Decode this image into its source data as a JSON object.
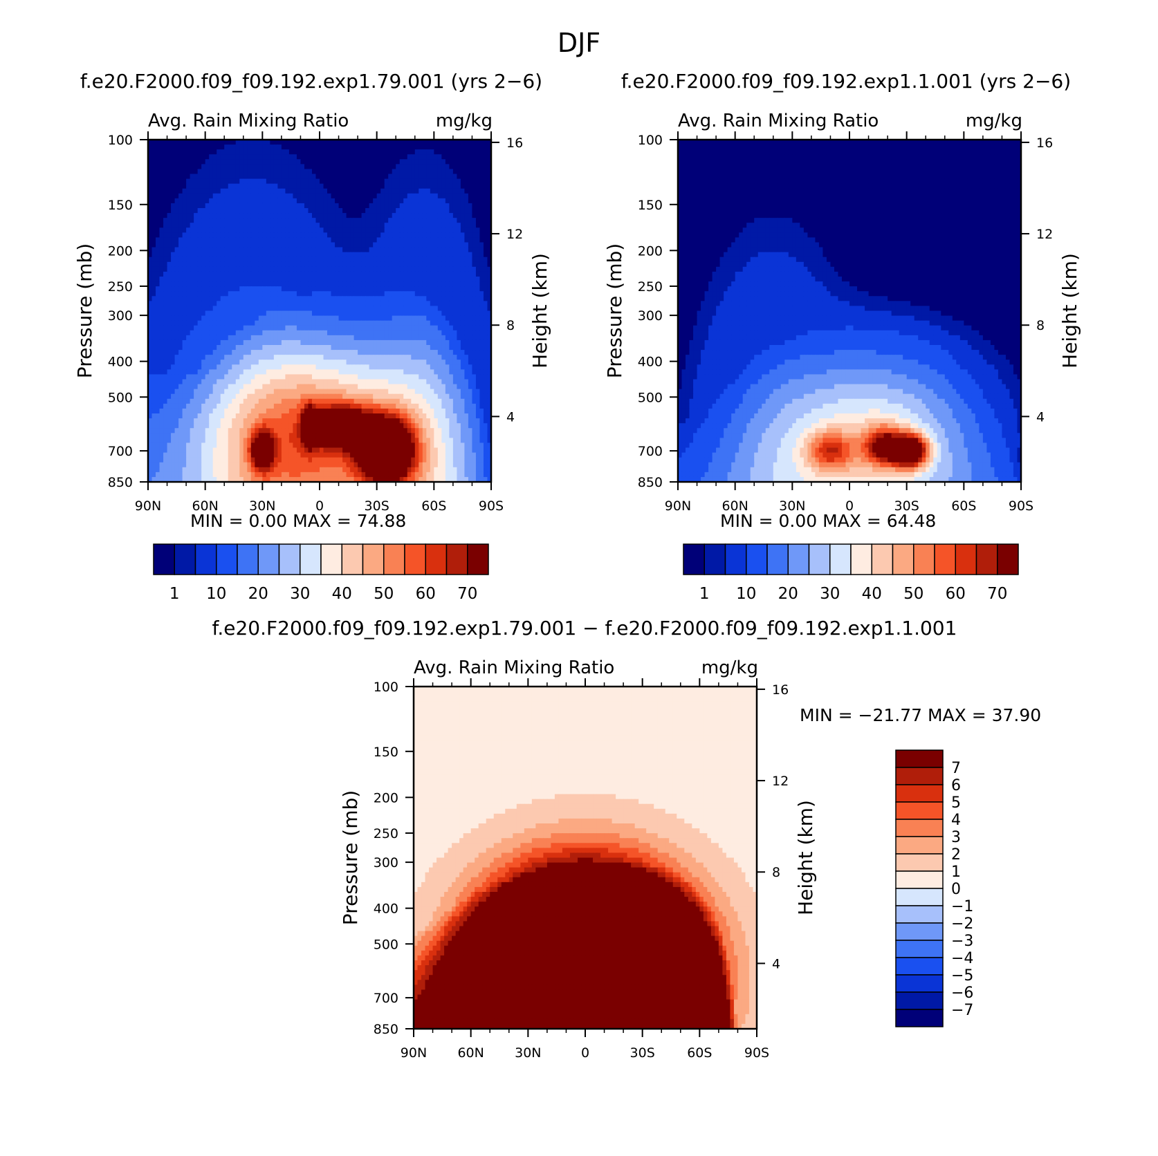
{
  "page": {
    "title": "DJF"
  },
  "colormaps": {
    "absolute": [
      "#000078",
      "#0019a6",
      "#0a34d6",
      "#1a50f0",
      "#3e73f5",
      "#6f98f8",
      "#a7c0fb",
      "#d6e6fd",
      "#feece1",
      "#fcc9b0",
      "#fba982",
      "#f98154",
      "#f55428",
      "#d9300e",
      "#b01e0a",
      "#7a0000"
    ],
    "difference": [
      "#000078",
      "#0019a6",
      "#0a34d6",
      "#1a50f0",
      "#3e73f5",
      "#6f98f8",
      "#a7c0fb",
      "#d6e6fd",
      "#feece1",
      "#fcc9b0",
      "#fba982",
      "#f98154",
      "#f55428",
      "#d9300e",
      "#b01e0a",
      "#7a0000"
    ]
  },
  "chart_data": [
    {
      "type": "heatmap",
      "title": "f.e20.F2000.f09_f09.192.exp1.79.001 (yrs 2−6)",
      "subtitle_left": "Avg. Rain Mixing Ratio",
      "subtitle_right": "mg/kg",
      "ylabel": "Pressure (mb)",
      "y2label": "Height (km)",
      "x_ticks": [
        "90N",
        "60N",
        "30N",
        "0",
        "30S",
        "60S",
        "90S"
      ],
      "xlim": [
        90,
        -90
      ],
      "ylim": [
        850,
        100
      ],
      "y_scale": "log",
      "y_ticks": [
        100,
        150,
        200,
        250,
        300,
        400,
        500,
        700,
        850
      ],
      "y2_ticks": [
        16,
        12,
        8,
        4
      ],
      "stats": {
        "min_label": "MIN =",
        "min": "0.00",
        "max_label": "MAX =",
        "max": "74.88"
      },
      "colorbar": {
        "orientation": "horizontal",
        "labels": [
          "1",
          "10",
          "20",
          "30",
          "40",
          "50",
          "60",
          "70"
        ]
      },
      "field": {
        "background": 0,
        "top_boundary": [
          [
            90,
            420
          ],
          [
            75,
            450
          ],
          [
            60,
            420
          ],
          [
            45,
            370
          ],
          [
            35,
            315
          ],
          [
            25,
            285
          ],
          [
            15,
            265
          ],
          [
            5,
            262
          ],
          [
            -10,
            260
          ],
          [
            -25,
            258
          ],
          [
            -40,
            257
          ],
          [
            -55,
            265
          ],
          [
            -65,
            300
          ],
          [
            -75,
            370
          ],
          [
            -82,
            450
          ],
          [
            -86,
            560
          ],
          [
            -90,
            700
          ]
        ],
        "blobs": [
          {
            "lat": -35,
            "p": 700,
            "amp": 75,
            "wlat": 14,
            "wp": 0.2
          },
          {
            "lat": -12,
            "p": 600,
            "amp": 52,
            "wlat": 14,
            "wp": 0.12
          },
          {
            "lat": 5,
            "p": 600,
            "amp": 42,
            "wlat": 4,
            "wp": 0.12
          },
          {
            "lat": 30,
            "p": 700,
            "amp": 42,
            "wlat": 6,
            "wp": 0.12
          },
          {
            "lat": 0,
            "p": 620,
            "amp": 34,
            "wlat": 55,
            "wp": 0.5
          },
          {
            "lat": 35,
            "p": 850,
            "amp": 12,
            "wlat": 40,
            "wp": 1.2
          },
          {
            "lat": -55,
            "p": 850,
            "amp": 10,
            "wlat": 25,
            "wp": 1.2
          }
        ]
      }
    },
    {
      "type": "heatmap",
      "title": "f.e20.F2000.f09_f09.192.exp1.1.001 (yrs 2−6)",
      "subtitle_left": "Avg. Rain Mixing Ratio",
      "subtitle_right": "mg/kg",
      "ylabel": "Pressure (mb)",
      "y2label": "Height (km)",
      "x_ticks": [
        "90N",
        "60N",
        "30N",
        "0",
        "30S",
        "60S",
        "90S"
      ],
      "xlim": [
        90,
        -90
      ],
      "ylim": [
        850,
        100
      ],
      "y_scale": "log",
      "y_ticks": [
        100,
        150,
        200,
        250,
        300,
        400,
        500,
        700,
        850
      ],
      "y2_ticks": [
        16,
        12,
        8,
        4
      ],
      "stats": {
        "min_label": "MIN =",
        "min": "0.00",
        "max_label": "MAX =",
        "max": "64.48"
      },
      "colorbar": {
        "orientation": "horizontal",
        "labels": [
          "1",
          "10",
          "20",
          "30",
          "40",
          "50",
          "60",
          "70"
        ]
      },
      "field": {
        "background": 0,
        "top_boundary": [
          [
            90,
            600
          ],
          [
            75,
            520
          ],
          [
            60,
            450
          ],
          [
            45,
            400
          ],
          [
            30,
            350
          ],
          [
            15,
            320
          ],
          [
            0,
            300
          ],
          [
            -20,
            300
          ],
          [
            -35,
            310
          ],
          [
            -50,
            340
          ],
          [
            -65,
            420
          ],
          [
            -78,
            520
          ],
          [
            -86,
            650
          ],
          [
            -90,
            800
          ]
        ],
        "blobs": [
          {
            "lat": -32,
            "p": 700,
            "amp": 64,
            "wlat": 9,
            "wp": 0.1
          },
          {
            "lat": -18,
            "p": 680,
            "amp": 40,
            "wlat": 10,
            "wp": 0.12
          },
          {
            "lat": 10,
            "p": 700,
            "amp": 28,
            "wlat": 12,
            "wp": 0.12
          },
          {
            "lat": -10,
            "p": 650,
            "amp": 22,
            "wlat": 45,
            "wp": 0.45
          },
          {
            "lat": 40,
            "p": 850,
            "amp": 8,
            "wlat": 30,
            "wp": 1.0
          }
        ]
      }
    },
    {
      "type": "heatmap",
      "title": "f.e20.F2000.f09_f09.192.exp1.79.001 − f.e20.F2000.f09_f09.192.exp1.1.001",
      "subtitle_left": "Avg. Rain Mixing Ratio",
      "subtitle_right": "mg/kg",
      "ylabel": "Pressure (mb)",
      "y2label": "Height (km)",
      "x_ticks": [
        "90N",
        "60N",
        "30N",
        "0",
        "30S",
        "60S",
        "90S"
      ],
      "xlim": [
        90,
        -90
      ],
      "ylim": [
        850,
        100
      ],
      "y_scale": "log",
      "y_ticks": [
        100,
        150,
        200,
        250,
        300,
        400,
        500,
        700,
        850
      ],
      "y2_ticks": [
        16,
        12,
        8,
        4
      ],
      "stats": {
        "min_label": "MIN =",
        "min": "−21.77",
        "max_label": "MAX =",
        "max": "37.90"
      },
      "colorbar": {
        "orientation": "vertical",
        "labels": [
          "7",
          "6",
          "5",
          "4",
          "3",
          "2",
          "1",
          "0",
          "−1",
          "−2",
          "−3",
          "−4",
          "−5",
          "−6",
          "−7"
        ]
      },
      "field": {
        "background": 0.5,
        "top_boundary": [
          [
            90,
            480
          ],
          [
            75,
            420
          ],
          [
            60,
            370
          ],
          [
            45,
            340
          ],
          [
            30,
            320
          ],
          [
            15,
            305
          ],
          [
            0,
            300
          ],
          [
            -15,
            300
          ],
          [
            -30,
            305
          ],
          [
            -45,
            315
          ],
          [
            -60,
            360
          ],
          [
            -70,
            440
          ],
          [
            -75,
            560
          ],
          [
            -78,
            700
          ],
          [
            -80,
            850
          ]
        ],
        "blobs": [
          {
            "lat": 0,
            "p": 620,
            "amp": 40,
            "wlat": 48,
            "wp": 0.55
          },
          {
            "lat": 13,
            "p": 700,
            "amp": -24,
            "wlat": 6,
            "wp": 0.07
          },
          {
            "lat": -20,
            "p": 700,
            "amp": -20,
            "wlat": 8,
            "wp": 0.04
          },
          {
            "lat": 5,
            "p": 700,
            "amp": -8,
            "wlat": 4,
            "wp": 0.05
          }
        ]
      }
    }
  ]
}
